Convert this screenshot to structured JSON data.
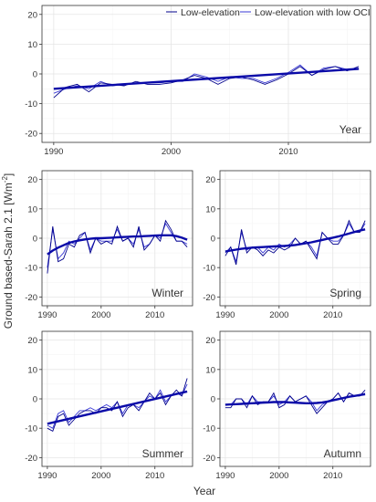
{
  "figure": {
    "ylabel": "Ground based-Sarah 2.1 [Wm",
    "ylabel_sup": "-2",
    "ylabel_end": "]",
    "xlabel": "Year"
  },
  "legend": [
    {
      "label": "Low-elevation",
      "color": "#00008b"
    },
    {
      "label": "Low-elevation with low OCI",
      "color": "#3a3ad6"
    }
  ],
  "colors": {
    "panel_border": "#333333",
    "grid": "#e5e5e5",
    "background": "#ffffff"
  },
  "chart_data": [
    {
      "type": "line",
      "panel_label": "Year",
      "xlim": [
        1989,
        2017
      ],
      "ylim": [
        -23,
        23
      ],
      "xticks": [
        1990,
        2000,
        2010
      ],
      "yticks": [
        -20,
        -10,
        0,
        10,
        20
      ],
      "x": [
        1990,
        1991,
        1992,
        1993,
        1994,
        1995,
        1996,
        1997,
        1998,
        1999,
        2000,
        2001,
        2002,
        2003,
        2004,
        2005,
        2006,
        2007,
        2008,
        2009,
        2010,
        2011,
        2012,
        2013,
        2014,
        2015,
        2016
      ],
      "series": [
        {
          "name": "Low-elevation",
          "values": [
            -8,
            -4.5,
            -3.5,
            -6,
            -3,
            -3.5,
            -4,
            -2.5,
            -3.5,
            -3.5,
            -3,
            -2,
            -0.5,
            -1.5,
            -3.5,
            -1.5,
            -1,
            -2,
            -3.5,
            -2,
            0,
            2.5,
            -0.5,
            1.5,
            2.5,
            1,
            2.5
          ]
        },
        {
          "name": "Low-elevation with low OCI",
          "values": [
            -6.5,
            -5,
            -4,
            -5,
            -2.5,
            -4,
            -3.5,
            -3,
            -3,
            -3,
            -2.5,
            -2.5,
            0,
            -1,
            -2.5,
            -1,
            -1.5,
            -1.5,
            -3,
            -1.5,
            0.5,
            3,
            -0.5,
            2,
            2.5,
            1.5,
            1.5
          ]
        }
      ],
      "trend": [
        -5,
        1.7
      ]
    },
    {
      "type": "line",
      "panel_label": "Winter",
      "xlim": [
        1989,
        2017
      ],
      "ylim": [
        -23,
        23
      ],
      "xticks": [
        1990,
        2000,
        2010
      ],
      "yticks": [
        -20,
        -10,
        0,
        10,
        20
      ],
      "x": [
        1990,
        1991,
        1992,
        1993,
        1994,
        1995,
        1996,
        1997,
        1998,
        1999,
        2000,
        2001,
        2002,
        2003,
        2004,
        2005,
        2006,
        2007,
        2008,
        2009,
        2010,
        2011,
        2012,
        2013,
        2014,
        2015,
        2016
      ],
      "series": [
        {
          "name": "Low-elevation",
          "values": [
            -12,
            4,
            -8,
            -7,
            -2,
            -3,
            1,
            2,
            -5,
            0,
            -2,
            -1,
            -2,
            4,
            -1,
            0,
            -3,
            4,
            -4,
            -2,
            1,
            -1,
            6,
            3,
            -1,
            -1,
            -3
          ]
        },
        {
          "name": "Low-elevation with low OCI",
          "values": [
            -10,
            3,
            -7,
            -5,
            -1,
            -2,
            0,
            2,
            -4,
            0,
            -1,
            -1,
            -1,
            3,
            -1,
            0,
            -2,
            3,
            -3,
            -2,
            1,
            0,
            5,
            2,
            -1,
            -1,
            -2
          ]
        }
      ],
      "trend_curve": [
        -5.5,
        -4.2,
        -3.2,
        -2.4,
        -1.6,
        -1.1,
        -0.7,
        -0.4,
        -0.2,
        0,
        0,
        0.1,
        0.2,
        0.3,
        0.4,
        0.5,
        0.6,
        0.6,
        0.7,
        0.8,
        0.9,
        1,
        1,
        1,
        0.7,
        0.2,
        -0.5
      ]
    },
    {
      "type": "line",
      "panel_label": "Spring",
      "xlim": [
        1989,
        2017
      ],
      "ylim": [
        -23,
        23
      ],
      "xticks": [
        1990,
        2000,
        2010
      ],
      "yticks": [
        -20,
        -10,
        0,
        10,
        20
      ],
      "x": [
        1990,
        1991,
        1992,
        1993,
        1994,
        1995,
        1996,
        1997,
        1998,
        1999,
        2000,
        2001,
        2002,
        2003,
        2004,
        2005,
        2006,
        2007,
        2008,
        2009,
        2010,
        2011,
        2012,
        2013,
        2014,
        2015,
        2016
      ],
      "series": [
        {
          "name": "Low-elevation",
          "values": [
            -6,
            -3,
            -9,
            3,
            -5,
            -3,
            -4,
            -6,
            -4,
            -5,
            -3,
            -4,
            -3,
            0,
            -2,
            -1,
            -4,
            -7,
            2,
            0,
            -2,
            -2,
            1,
            6,
            2,
            2,
            6
          ]
        },
        {
          "name": "Low-elevation with low OCI",
          "values": [
            -5,
            -3,
            -8,
            2,
            -4,
            -3,
            -3,
            -5,
            -3,
            -4,
            -2,
            -3,
            -2,
            0,
            -2,
            -1,
            -3,
            -6,
            2,
            0,
            -1,
            -1,
            1,
            5,
            2,
            2,
            5
          ]
        }
      ],
      "trend_curve": [
        -4.5,
        -4.2,
        -3.9,
        -3.6,
        -3.4,
        -3.2,
        -3.1,
        -3,
        -2.9,
        -2.8,
        -2.7,
        -2.6,
        -2.5,
        -2.3,
        -2,
        -1.7,
        -1.4,
        -1,
        -0.6,
        -0.2,
        0.2,
        0.6,
        1.1,
        1.6,
        2.1,
        2.6,
        3
      ]
    },
    {
      "type": "line",
      "panel_label": "Summer",
      "xlim": [
        1989,
        2017
      ],
      "ylim": [
        -23,
        23
      ],
      "xticks": [
        1990,
        2000,
        2010
      ],
      "yticks": [
        -20,
        -10,
        0,
        10,
        20
      ],
      "x": [
        1990,
        1991,
        1992,
        1993,
        1994,
        1995,
        1996,
        1997,
        1998,
        1999,
        2000,
        2001,
        2002,
        2003,
        2004,
        2005,
        2006,
        2007,
        2008,
        2009,
        2010,
        2011,
        2012,
        2013,
        2014,
        2015,
        2016
      ],
      "series": [
        {
          "name": "Low-elevation",
          "values": [
            -10,
            -11,
            -6,
            -5,
            -9,
            -7,
            -5,
            -4,
            -4,
            -5,
            -3,
            -3,
            -4,
            -1,
            -6,
            -3,
            -2,
            -4,
            -1,
            2,
            0,
            2,
            -2,
            1,
            3,
            1,
            7
          ]
        },
        {
          "name": "Low-elevation with low OCI",
          "values": [
            -9,
            -10,
            -5,
            -4,
            -8,
            -6,
            -4,
            -4,
            -3,
            -4,
            -3,
            -2,
            -3,
            -1,
            -5,
            -2,
            -2,
            -3,
            -1,
            1,
            0,
            3,
            -1,
            1,
            2,
            1,
            5
          ]
        }
      ],
      "trend": [
        -8.5,
        2.5
      ]
    },
    {
      "type": "line",
      "panel_label": "Autumn",
      "xlim": [
        1989,
        2017
      ],
      "ylim": [
        -23,
        23
      ],
      "xticks": [
        1990,
        2000,
        2010
      ],
      "yticks": [
        -20,
        -10,
        0,
        10,
        20
      ],
      "x": [
        1990,
        1991,
        1992,
        1993,
        1994,
        1995,
        1996,
        1997,
        1998,
        1999,
        2000,
        2001,
        2002,
        2003,
        2004,
        2005,
        2006,
        2007,
        2008,
        2009,
        2010,
        2011,
        2012,
        2013,
        2014,
        2015,
        2016
      ],
      "series": [
        {
          "name": "Low-elevation",
          "values": [
            -3,
            -3,
            0,
            0,
            -3,
            1,
            -2,
            -1,
            -1,
            2,
            -3,
            -2,
            1,
            -1,
            0,
            1,
            -2,
            -5,
            -3,
            -1,
            0,
            2,
            -1,
            2,
            1,
            1,
            3
          ]
        },
        {
          "name": "Low-elevation with low OCI",
          "values": [
            -2,
            -2,
            0,
            0,
            -2,
            1,
            -1,
            -1,
            -1,
            1,
            -2,
            -1,
            1,
            -1,
            0,
            1,
            -1,
            -4,
            -2,
            -1,
            0,
            2,
            -1,
            2,
            1,
            1,
            2
          ]
        }
      ],
      "trend_curve": [
        -2,
        -1.9,
        -1.8,
        -1.7,
        -1.6,
        -1.5,
        -1.4,
        -1.3,
        -1.2,
        -1.1,
        -1.1,
        -1.1,
        -1.2,
        -1.3,
        -1.4,
        -1.5,
        -1.5,
        -1.4,
        -1.2,
        -0.9,
        -0.5,
        -0.1,
        0.3,
        0.7,
        1,
        1.3,
        1.6
      ]
    }
  ]
}
